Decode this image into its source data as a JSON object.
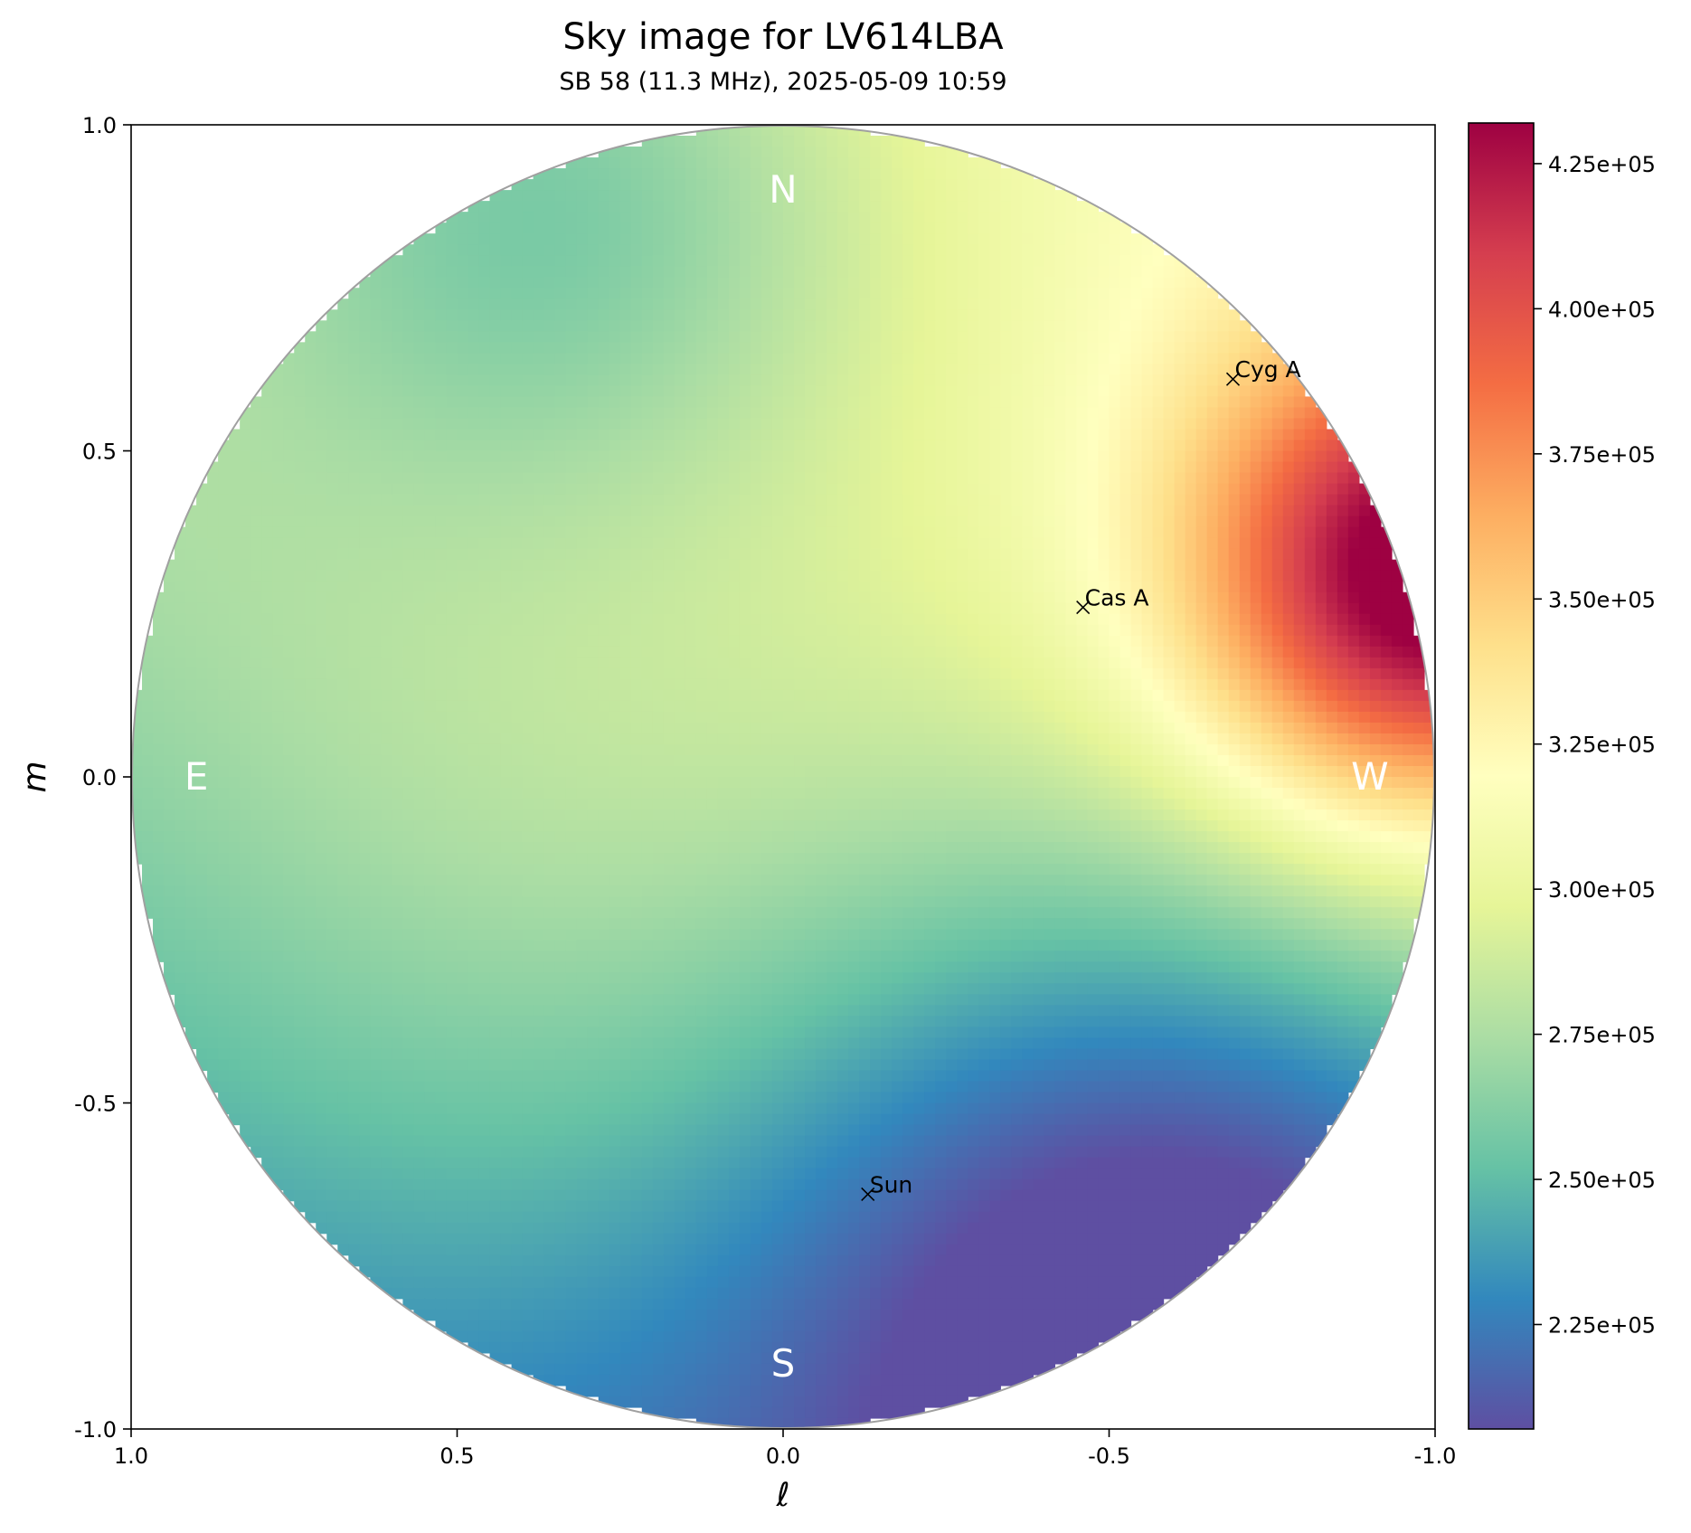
{
  "chart_data": {
    "type": "heatmap",
    "title": "Sky image for LV614LBA",
    "subtitle": "SB 58 (11.3 MHz), 2025-05-09 10:59",
    "xlabel": "ℓ",
    "ylabel": "m",
    "xlim": [
      1.0,
      -1.0
    ],
    "ylim": [
      -1.0,
      1.0
    ],
    "x_ticks": [
      "1.0",
      "0.5",
      "0.0",
      "-0.5",
      "-1.0"
    ],
    "x_tick_values": [
      1.0,
      0.5,
      0.0,
      -0.5,
      -1.0
    ],
    "y_ticks": [
      "1.0",
      "0.5",
      "0.0",
      "-0.5",
      "-1.0"
    ],
    "y_tick_values": [
      1.0,
      0.5,
      0.0,
      -0.5,
      -1.0
    ],
    "colormap": "Spectral_r",
    "colormap_stops": [
      "#5e4fa2",
      "#3288bd",
      "#66c2a5",
      "#abdda4",
      "#e6f598",
      "#ffffbf",
      "#fee08b",
      "#fdae61",
      "#f46d43",
      "#d53e4f",
      "#9e0142"
    ],
    "colorbar": {
      "min": 207000,
      "max": 432000,
      "ticks": [
        {
          "value": 225000,
          "label": "2.25e+05"
        },
        {
          "value": 250000,
          "label": "2.50e+05"
        },
        {
          "value": 275000,
          "label": "2.75e+05"
        },
        {
          "value": 300000,
          "label": "3.00e+05"
        },
        {
          "value": 325000,
          "label": "3.25e+05"
        },
        {
          "value": 350000,
          "label": "3.50e+05"
        },
        {
          "value": 375000,
          "label": "3.75e+05"
        },
        {
          "value": 400000,
          "label": "4.00e+05"
        },
        {
          "value": 425000,
          "label": "4.25e+05"
        }
      ]
    },
    "compass": [
      {
        "label": "N",
        "l": 0.0,
        "m": 0.9
      },
      {
        "label": "S",
        "l": 0.0,
        "m": -0.9
      },
      {
        "label": "E",
        "l": 0.9,
        "m": 0.0
      },
      {
        "label": "W",
        "l": -0.9,
        "m": 0.0
      }
    ],
    "sources": [
      {
        "name": "Cyg A",
        "l": -0.69,
        "m": 0.61
      },
      {
        "name": "Cas A",
        "l": -0.46,
        "m": 0.26
      },
      {
        "name": "Sun",
        "l": -0.13,
        "m": -0.64
      }
    ],
    "field_model": {
      "base": 265000,
      "gradient": [
        {
          "axis": "m",
          "coef": 35000
        },
        {
          "axis": "l",
          "coef": -8000
        }
      ],
      "hotspot": {
        "l": -1.0,
        "m": 0.3,
        "peak": 432000,
        "base_at_peak": 300000,
        "sigma": 0.25
      },
      "ridge": {
        "l": 0.3,
        "m": -0.05,
        "value": 285000,
        "sigma": 0.55
      },
      "cold": {
        "l": -0.6,
        "m": -0.75,
        "value": 208000,
        "sigma": 0.45
      },
      "north_dip": {
        "l": 0.35,
        "m": 0.9,
        "value": 225000,
        "sigma": 0.35
      }
    }
  }
}
